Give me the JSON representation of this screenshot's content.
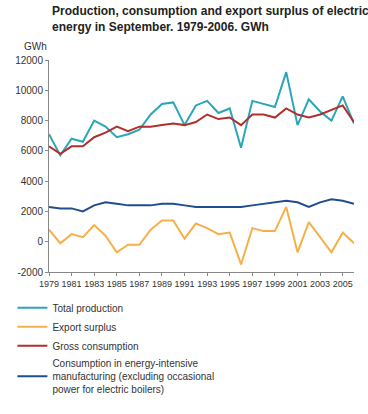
{
  "chart_data": {
    "type": "line",
    "title": "Production, consumption and export surplus of electric\nenergy in September. 1979-2006. GWh",
    "ylabel": "GWh",
    "x": [
      1979,
      1980,
      1981,
      1982,
      1983,
      1984,
      1985,
      1986,
      1987,
      1988,
      1989,
      1990,
      1991,
      1992,
      1993,
      1994,
      1995,
      1996,
      1997,
      1998,
      1999,
      2000,
      2001,
      2002,
      2003,
      2004,
      2005,
      2006
    ],
    "series": [
      {
        "name": "Total production",
        "color": "#2aa6b8",
        "values": [
          7100,
          5700,
          6800,
          6600,
          8000,
          7600,
          6900,
          7100,
          7400,
          8400,
          9100,
          9200,
          7700,
          9000,
          9300,
          8500,
          8800,
          6200,
          9300,
          9100,
          8900,
          11200,
          7700,
          9400,
          8600,
          8000,
          9600,
          7800
        ]
      },
      {
        "name": "Export surplus",
        "color": "#f5b04a",
        "values": [
          800,
          -100,
          500,
          300,
          1100,
          400,
          -700,
          -200,
          -200,
          800,
          1400,
          1400,
          200,
          1200,
          900,
          500,
          600,
          -1500,
          900,
          700,
          700,
          2300,
          -700,
          1300,
          300,
          -700,
          600,
          -100
        ]
      },
      {
        "name": "Gross consumption",
        "color": "#b0302d",
        "values": [
          6300,
          5800,
          6300,
          6300,
          6900,
          7200,
          7600,
          7300,
          7600,
          7600,
          7700,
          7800,
          7700,
          7900,
          8400,
          8100,
          8200,
          7700,
          8400,
          8400,
          8200,
          8800,
          8400,
          8200,
          8400,
          8700,
          9000,
          7900
        ]
      },
      {
        "name": "Consumption in energy-intensive\nmanufacturing (excluding occasional\npower for electric boilers)",
        "color": "#1f4e8c",
        "values": [
          2300,
          2200,
          2200,
          2000,
          2400,
          2600,
          2500,
          2400,
          2400,
          2400,
          2500,
          2500,
          2400,
          2300,
          2300,
          2300,
          2300,
          2300,
          2400,
          2500,
          2600,
          2700,
          2600,
          2300,
          2600,
          2800,
          2700,
          2500
        ]
      }
    ],
    "xlim": [
      1979,
      2006
    ],
    "xticks": [
      1979,
      1981,
      1983,
      1985,
      1987,
      1989,
      1991,
      1993,
      1995,
      1997,
      1999,
      2001,
      2003,
      2005
    ],
    "ylim": [
      -2000,
      12000
    ],
    "yticks": [
      -2000,
      0,
      2000,
      4000,
      6000,
      8000,
      10000,
      12000
    ],
    "grid": false,
    "legend": "bottom"
  }
}
